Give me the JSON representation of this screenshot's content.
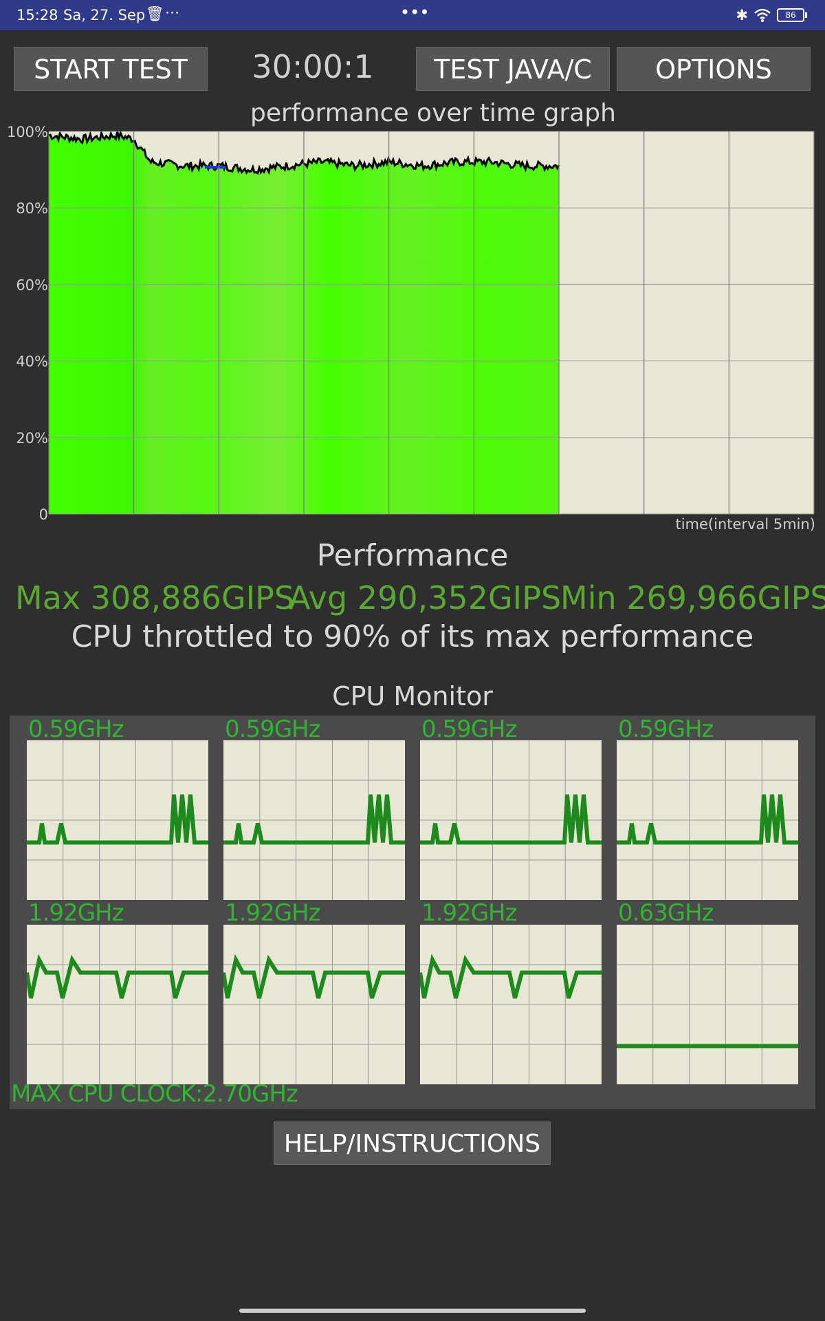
{
  "status_bar": {
    "time": "15:28",
    "date": "Sa, 27. Sep",
    "center_dots": "•••",
    "battery": "86"
  },
  "toolbar": {
    "start_test": "START TEST",
    "timer": "30:00:1",
    "test_java_c": "TEST JAVA/C",
    "options": "OPTIONS"
  },
  "graph": {
    "title": "performance over time graph",
    "y_ticks": [
      "100%",
      "80%",
      "60%",
      "40%",
      "20%",
      "0"
    ],
    "x_label": "time(interval 5min)"
  },
  "performance": {
    "title": "Performance",
    "max": "Max 308,886GIPS",
    "avg": "Avg 290,352GIPS",
    "min": "Min 269,966GIPS",
    "throttle_text": "CPU throttled to 90% of its max performance"
  },
  "cpu_monitor": {
    "title": "CPU Monitor",
    "cores": [
      {
        "freq": "0.59GHz",
        "pattern": "spikes"
      },
      {
        "freq": "0.59GHz",
        "pattern": "spikes"
      },
      {
        "freq": "0.59GHz",
        "pattern": "spikes"
      },
      {
        "freq": "0.59GHz",
        "pattern": "spikes"
      },
      {
        "freq": "1.92GHz",
        "pattern": "wave"
      },
      {
        "freq": "1.92GHz",
        "pattern": "wave"
      },
      {
        "freq": "1.92GHz",
        "pattern": "wave"
      },
      {
        "freq": "0.63GHz",
        "pattern": "flat"
      }
    ],
    "max_clock": "MAX CPU CLOCK:2.70GHz"
  },
  "help_button": "HELP/INSTRUCTIONS",
  "chart_data": {
    "type": "area",
    "x_label": "time(interval 5min)",
    "ylim": [
      0,
      100
    ],
    "y_ticks": [
      0,
      20,
      40,
      60,
      80,
      100
    ],
    "x_minutes": [
      0,
      2,
      4,
      5,
      6,
      8,
      10,
      12,
      14,
      16,
      18,
      20,
      22,
      24,
      26,
      28,
      30
    ],
    "series": [
      {
        "values": [
          99,
          98,
          99,
          98,
          92,
          91,
          91,
          90,
          91,
          92,
          91,
          92,
          91,
          92,
          92,
          91,
          91
        ]
      }
    ],
    "grid": true,
    "colors": {
      "fill": "#44ff00",
      "line": "#000000",
      "background": "#e8e7d5",
      "cpu_line": "#1e8a1e"
    }
  }
}
